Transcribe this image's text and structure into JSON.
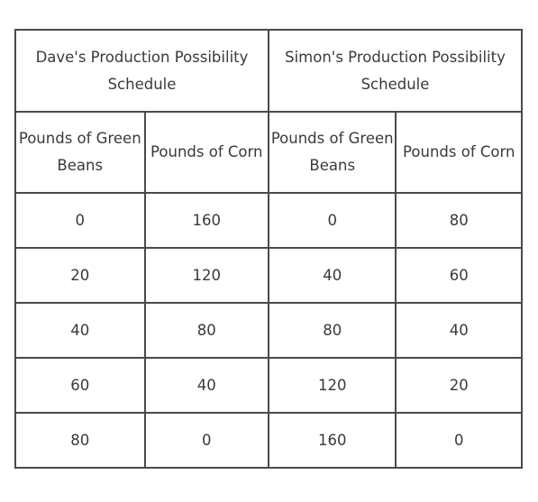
{
  "table": {
    "group_headers": [
      "Dave's Production Possibility Schedule",
      "Simon's Production Possibility Schedule"
    ],
    "column_headers": [
      "Pounds of Green Beans",
      "Pounds of Corn",
      "Pounds of Green Beans",
      "Pounds of Corn"
    ],
    "rows": [
      [
        "0",
        "160",
        "0",
        "80"
      ],
      [
        "20",
        "120",
        "40",
        "60"
      ],
      [
        "40",
        "80",
        "80",
        "40"
      ],
      [
        "60",
        "40",
        "120",
        "20"
      ],
      [
        "80",
        "0",
        "160",
        "0"
      ]
    ]
  }
}
